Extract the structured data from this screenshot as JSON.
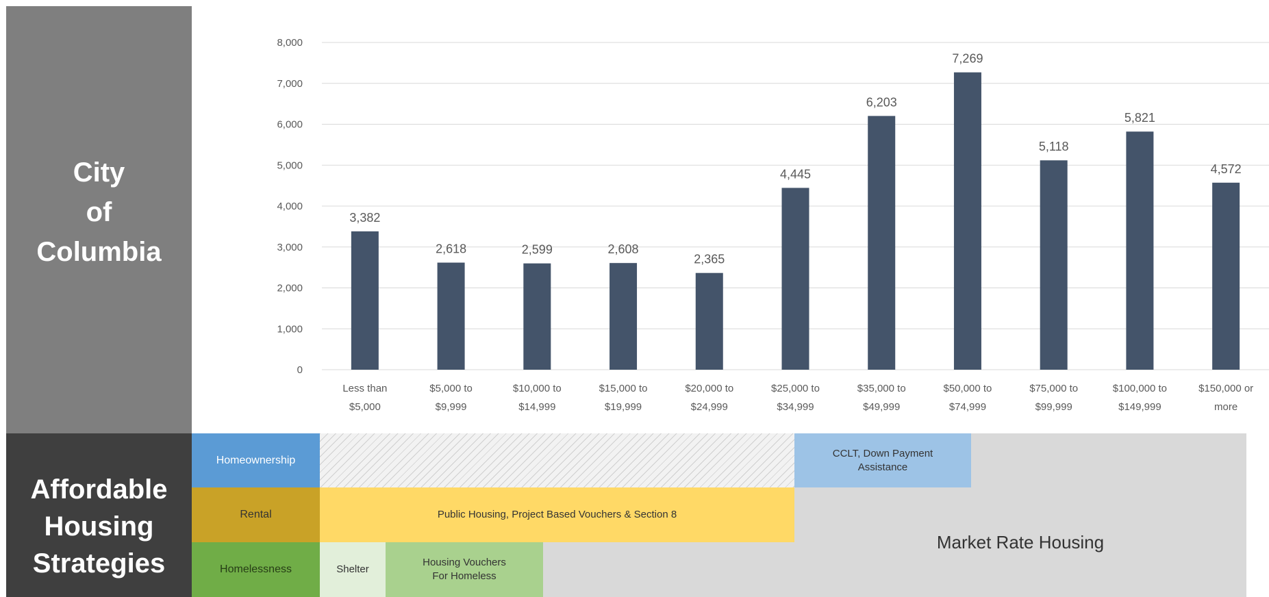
{
  "left_panel": {
    "city_title": "City\nof\nColumbia",
    "strategies_title": "Affordable\nHousing\nStrategies"
  },
  "chart_data": {
    "type": "bar",
    "categories": [
      "Less than\n$5,000",
      "$5,000 to\n$9,999",
      "$10,000 to\n$14,999",
      "$15,000 to\n$19,999",
      "$20,000 to\n$24,999",
      "$25,000 to\n$34,999",
      "$35,000 to\n$49,999",
      "$50,000 to\n$74,999",
      "$75,000 to\n$99,999",
      "$100,000 to\n$149,999",
      "$150,000 or\nmore"
    ],
    "values": [
      3382,
      2618,
      2599,
      2608,
      2365,
      4445,
      6203,
      7269,
      5118,
      5821,
      4572
    ],
    "data_labels": [
      "3,382",
      "2,618",
      "2,599",
      "2,608",
      "2,365",
      "4,445",
      "6,203",
      "7,269",
      "5,118",
      "5,821",
      "4,572"
    ],
    "ylim": [
      0,
      8000
    ],
    "yticks": [
      0,
      1000,
      2000,
      3000,
      4000,
      5000,
      6000,
      7000,
      8000
    ],
    "ytick_labels": [
      "0",
      "1,000",
      "2,000",
      "3,000",
      "4,000",
      "5,000",
      "6,000",
      "7,000",
      "8,000"
    ],
    "grid": "horizontal",
    "bar_color": "#44546a"
  },
  "strategies": {
    "homeownership": {
      "label": "Homeownership",
      "program": "CCLT, Down Payment\nAssistance"
    },
    "rental": {
      "label": "Rental",
      "program": "Public Housing, Project Based Vouchers & Section 8"
    },
    "homelessness": {
      "label": "Homelessness",
      "shelter": "Shelter",
      "vouchers": "Housing Vouchers\nFor Homeless"
    },
    "market_rate": "Market Rate Housing"
  }
}
